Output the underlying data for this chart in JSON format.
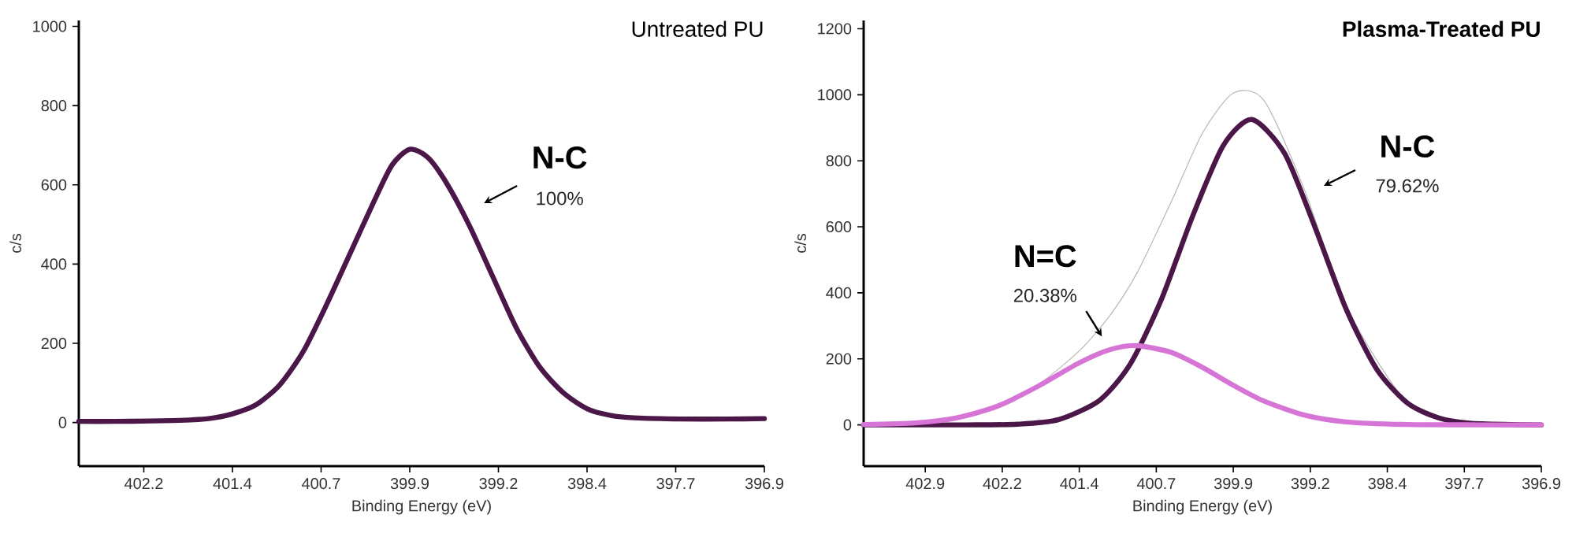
{
  "chart_data": [
    {
      "type": "line",
      "title": "Untreated PU",
      "xlabel": "Binding Energy (eV)",
      "ylabel": "c/s",
      "marker": "none",
      "xlim": [
        402.7,
        396.9
      ],
      "ylim": [
        -110,
        1015
      ],
      "xticks": [
        {
          "value": 402.15,
          "label": "402.2"
        },
        401.4,
        {
          "value": 400.65,
          "label": "400.7"
        },
        399.9,
        {
          "value": 399.15,
          "label": "399.2"
        },
        398.4,
        {
          "value": 397.65,
          "label": "397.7"
        },
        396.9
      ],
      "yticks": [
        0,
        200,
        400,
        600,
        800,
        1000
      ],
      "series": [
        {
          "color": "#4a1748",
          "x": [
            402.7,
            402.4,
            402.1,
            401.8,
            401.6,
            401.4,
            401.2,
            401.0,
            400.8,
            400.6,
            400.4,
            400.2,
            400.05,
            399.9,
            399.75,
            399.6,
            399.4,
            399.2,
            399.0,
            398.8,
            398.6,
            398.4,
            398.2,
            398.0,
            397.6,
            397.2,
            396.9
          ],
          "values": [
            3,
            3,
            4,
            6,
            10,
            22,
            45,
            95,
            180,
            300,
            430,
            560,
            650,
            690,
            670,
            610,
            500,
            370,
            240,
            140,
            75,
            35,
            18,
            12,
            9,
            9,
            10
          ]
        }
      ],
      "annotations": [
        "N-C",
        "100%"
      ]
    },
    {
      "type": "line",
      "title": "Plasma-Treated PU",
      "xlabel": "Binding Energy (eV)",
      "ylabel": "c/s",
      "marker": "none",
      "xlim": [
        403.5,
        396.9
      ],
      "ylim": [
        -125,
        1225
      ],
      "xticks": [
        402.9,
        {
          "value": 402.15,
          "label": "402.2"
        },
        401.4,
        {
          "value": 400.65,
          "label": "400.7"
        },
        399.9,
        {
          "value": 399.15,
          "label": "399.2"
        },
        398.4,
        {
          "value": 397.65,
          "label": "397.7"
        },
        396.9
      ],
      "yticks": [
        0,
        200,
        400,
        600,
        800,
        1000,
        1200
      ],
      "series": [
        {
          "color": "#b8b8b8",
          "x": [
            403.5,
            403.0,
            402.6,
            402.2,
            401.8,
            401.4,
            401.1,
            400.84,
            400.5,
            400.2,
            399.9,
            399.6,
            399.2,
            398.8,
            398.2,
            397.6,
            396.9
          ],
          "values": [
            1,
            6,
            21,
            57,
            122,
            224,
            332,
            459,
            679,
            884,
            1005,
            982,
            707,
            359,
            66,
            5,
            0
          ]
        },
        {
          "color": "#4a1748",
          "x": [
            403.5,
            402.5,
            402.0,
            401.6,
            401.2,
            400.9,
            400.6,
            400.3,
            400.0,
            399.72,
            399.4,
            399.1,
            398.8,
            398.5,
            398.2,
            397.9,
            397.6,
            397.2,
            396.9
          ],
          "values": [
            0,
            0,
            2,
            16,
            75,
            186,
            380,
            629,
            845,
            925,
            822,
            595,
            350,
            167,
            65,
            21,
            5,
            1,
            0
          ]
        },
        {
          "color": "#d675d6",
          "x": [
            403.5,
            403.0,
            402.6,
            402.2,
            401.8,
            401.4,
            401.1,
            400.84,
            400.5,
            400.2,
            399.9,
            399.6,
            399.2,
            398.8,
            398.2,
            397.5,
            396.9
          ],
          "values": [
            1,
            6,
            21,
            56,
            117,
            188,
            228,
            240,
            219,
            174,
            120,
            72,
            29,
            9,
            1,
            0,
            0
          ]
        }
      ],
      "annotations": [
        "N-C",
        "79.62%",
        {
          "text": "N=C",
          "x": 401.18,
          "y": 268
        },
        {
          "text": "20.38%",
          "x": 401.18,
          "y": 268
        }
      ]
    }
  ]
}
